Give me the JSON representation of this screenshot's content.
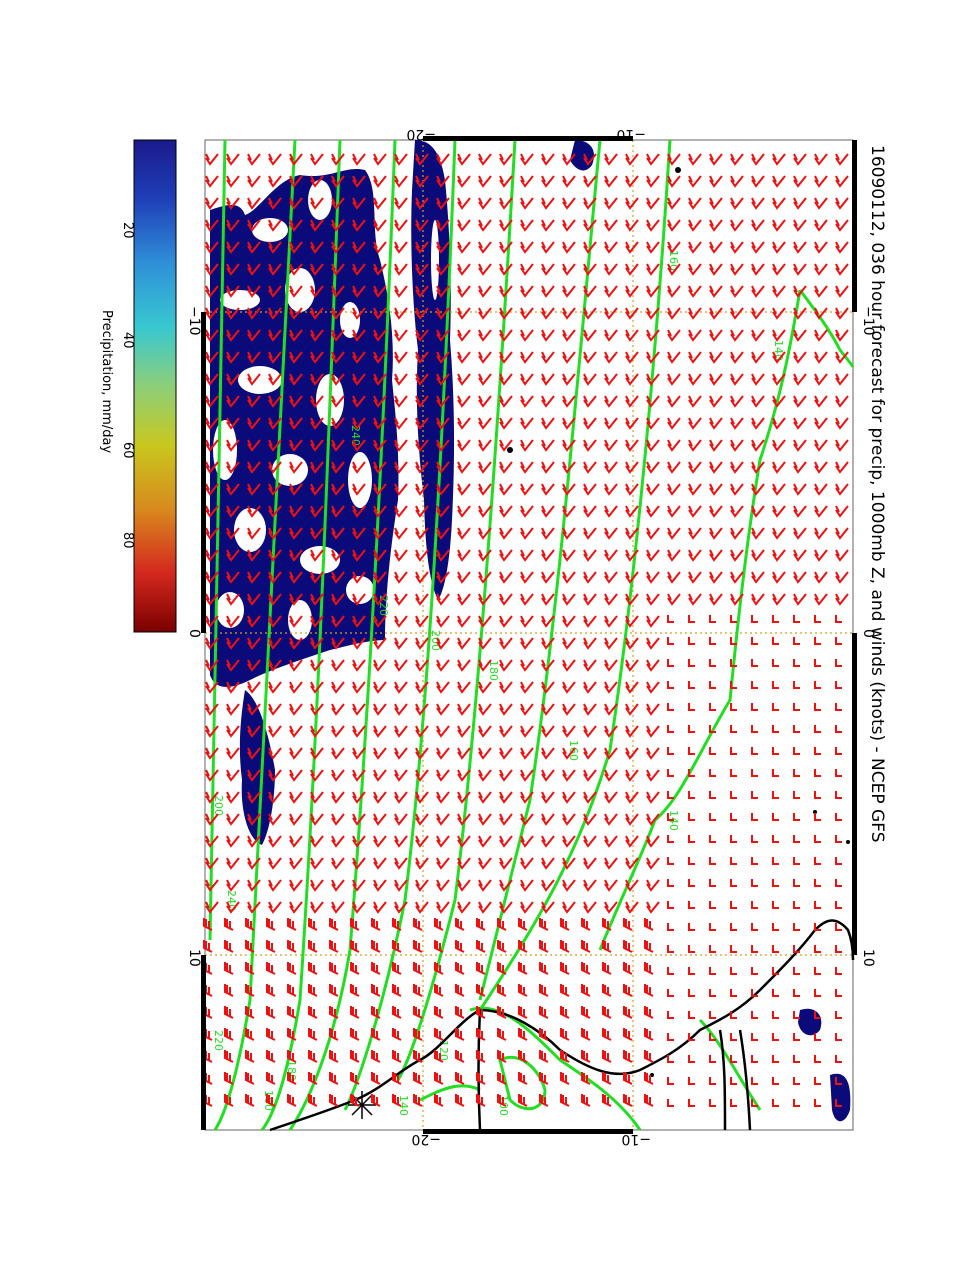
{
  "title": "16090112, 036 hour forecast for precip, 1000mb Z, and winds (knots) - NCEP GFS",
  "colorbar": {
    "label": "Precipitation, mm/day",
    "ticks": [
      "20",
      "40",
      "60",
      "80"
    ],
    "colors": [
      "#1a1a8c",
      "#1f3fb8",
      "#2f8fd8",
      "#37c8d0",
      "#8ccf7a",
      "#c8c81e",
      "#d88a1e",
      "#d4281e",
      "#7a0000"
    ]
  },
  "axes": {
    "top_ticks": [
      "−20",
      "−10"
    ],
    "bottom_ticks": [
      "−20",
      "−10"
    ],
    "left_ticks": [
      "−10",
      "0",
      "10"
    ],
    "right_ticks": [
      "−10",
      "0",
      "10"
    ]
  },
  "contour_labels": [
    "160",
    "140",
    "180",
    "160",
    "140",
    "200",
    "220",
    "240",
    "200",
    "220",
    "240",
    "180",
    "160",
    "140",
    "120",
    "100"
  ],
  "colors": {
    "contour": "#22dd22",
    "wind_barb": "#ee1111",
    "precip": "#0a0a7a",
    "coast": "#000000",
    "grid": "#d4a020"
  },
  "icons": {
    "wind": "wind-barb-icon",
    "station": "station-marker-icon"
  }
}
